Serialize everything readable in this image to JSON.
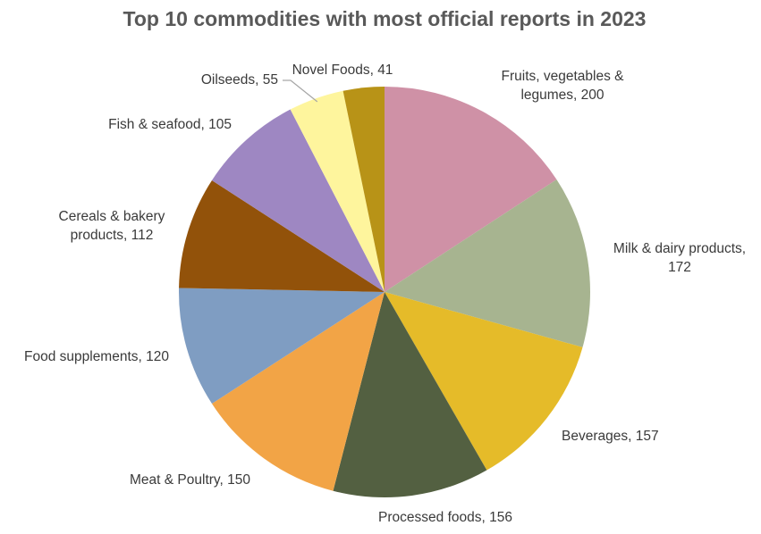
{
  "chart_data": {
    "type": "pie",
    "title": "Top 10 commodities with most official reports in 2023",
    "legend": "none",
    "start_angle_deg": 0,
    "direction": "clockwise",
    "slices": [
      {
        "category": "Fruits, vegetables & legumes",
        "value": 200,
        "label_lines": [
          "Fruits, vegetables &",
          "legumes, 200"
        ],
        "color": "#CF91A6"
      },
      {
        "category": "Milk & dairy products",
        "value": 172,
        "label_lines": [
          "Milk & dairy products,",
          "172"
        ],
        "color": "#A7B490"
      },
      {
        "category": "Beverages",
        "value": 157,
        "label_lines": [
          "Beverages, 157"
        ],
        "color": "#E5BB29"
      },
      {
        "category": "Processed foods",
        "value": 156,
        "label_lines": [
          "Processed foods, 156"
        ],
        "color": "#536041"
      },
      {
        "category": "Meat & Poultry",
        "value": 150,
        "label_lines": [
          "Meat & Poultry, 150"
        ],
        "color": "#F2A446"
      },
      {
        "category": "Food supplements",
        "value": 120,
        "label_lines": [
          "Food supplements, 120"
        ],
        "color": "#7F9DC2"
      },
      {
        "category": "Cereals & bakery products",
        "value": 112,
        "label_lines": [
          "Cereals & bakery",
          "products, 112"
        ],
        "color": "#92520A"
      },
      {
        "category": "Fish & seafood",
        "value": 105,
        "label_lines": [
          "Fish & seafood, 105"
        ],
        "color": "#9E87C2"
      },
      {
        "category": "Oilseeds",
        "value": 55,
        "label_lines": [
          "Oilseeds, 55"
        ],
        "color": "#FEF59D"
      },
      {
        "category": "Novel Foods",
        "value": 41,
        "label_lines": [
          "Novel Foods, 41"
        ],
        "color": "#B89317"
      }
    ]
  }
}
